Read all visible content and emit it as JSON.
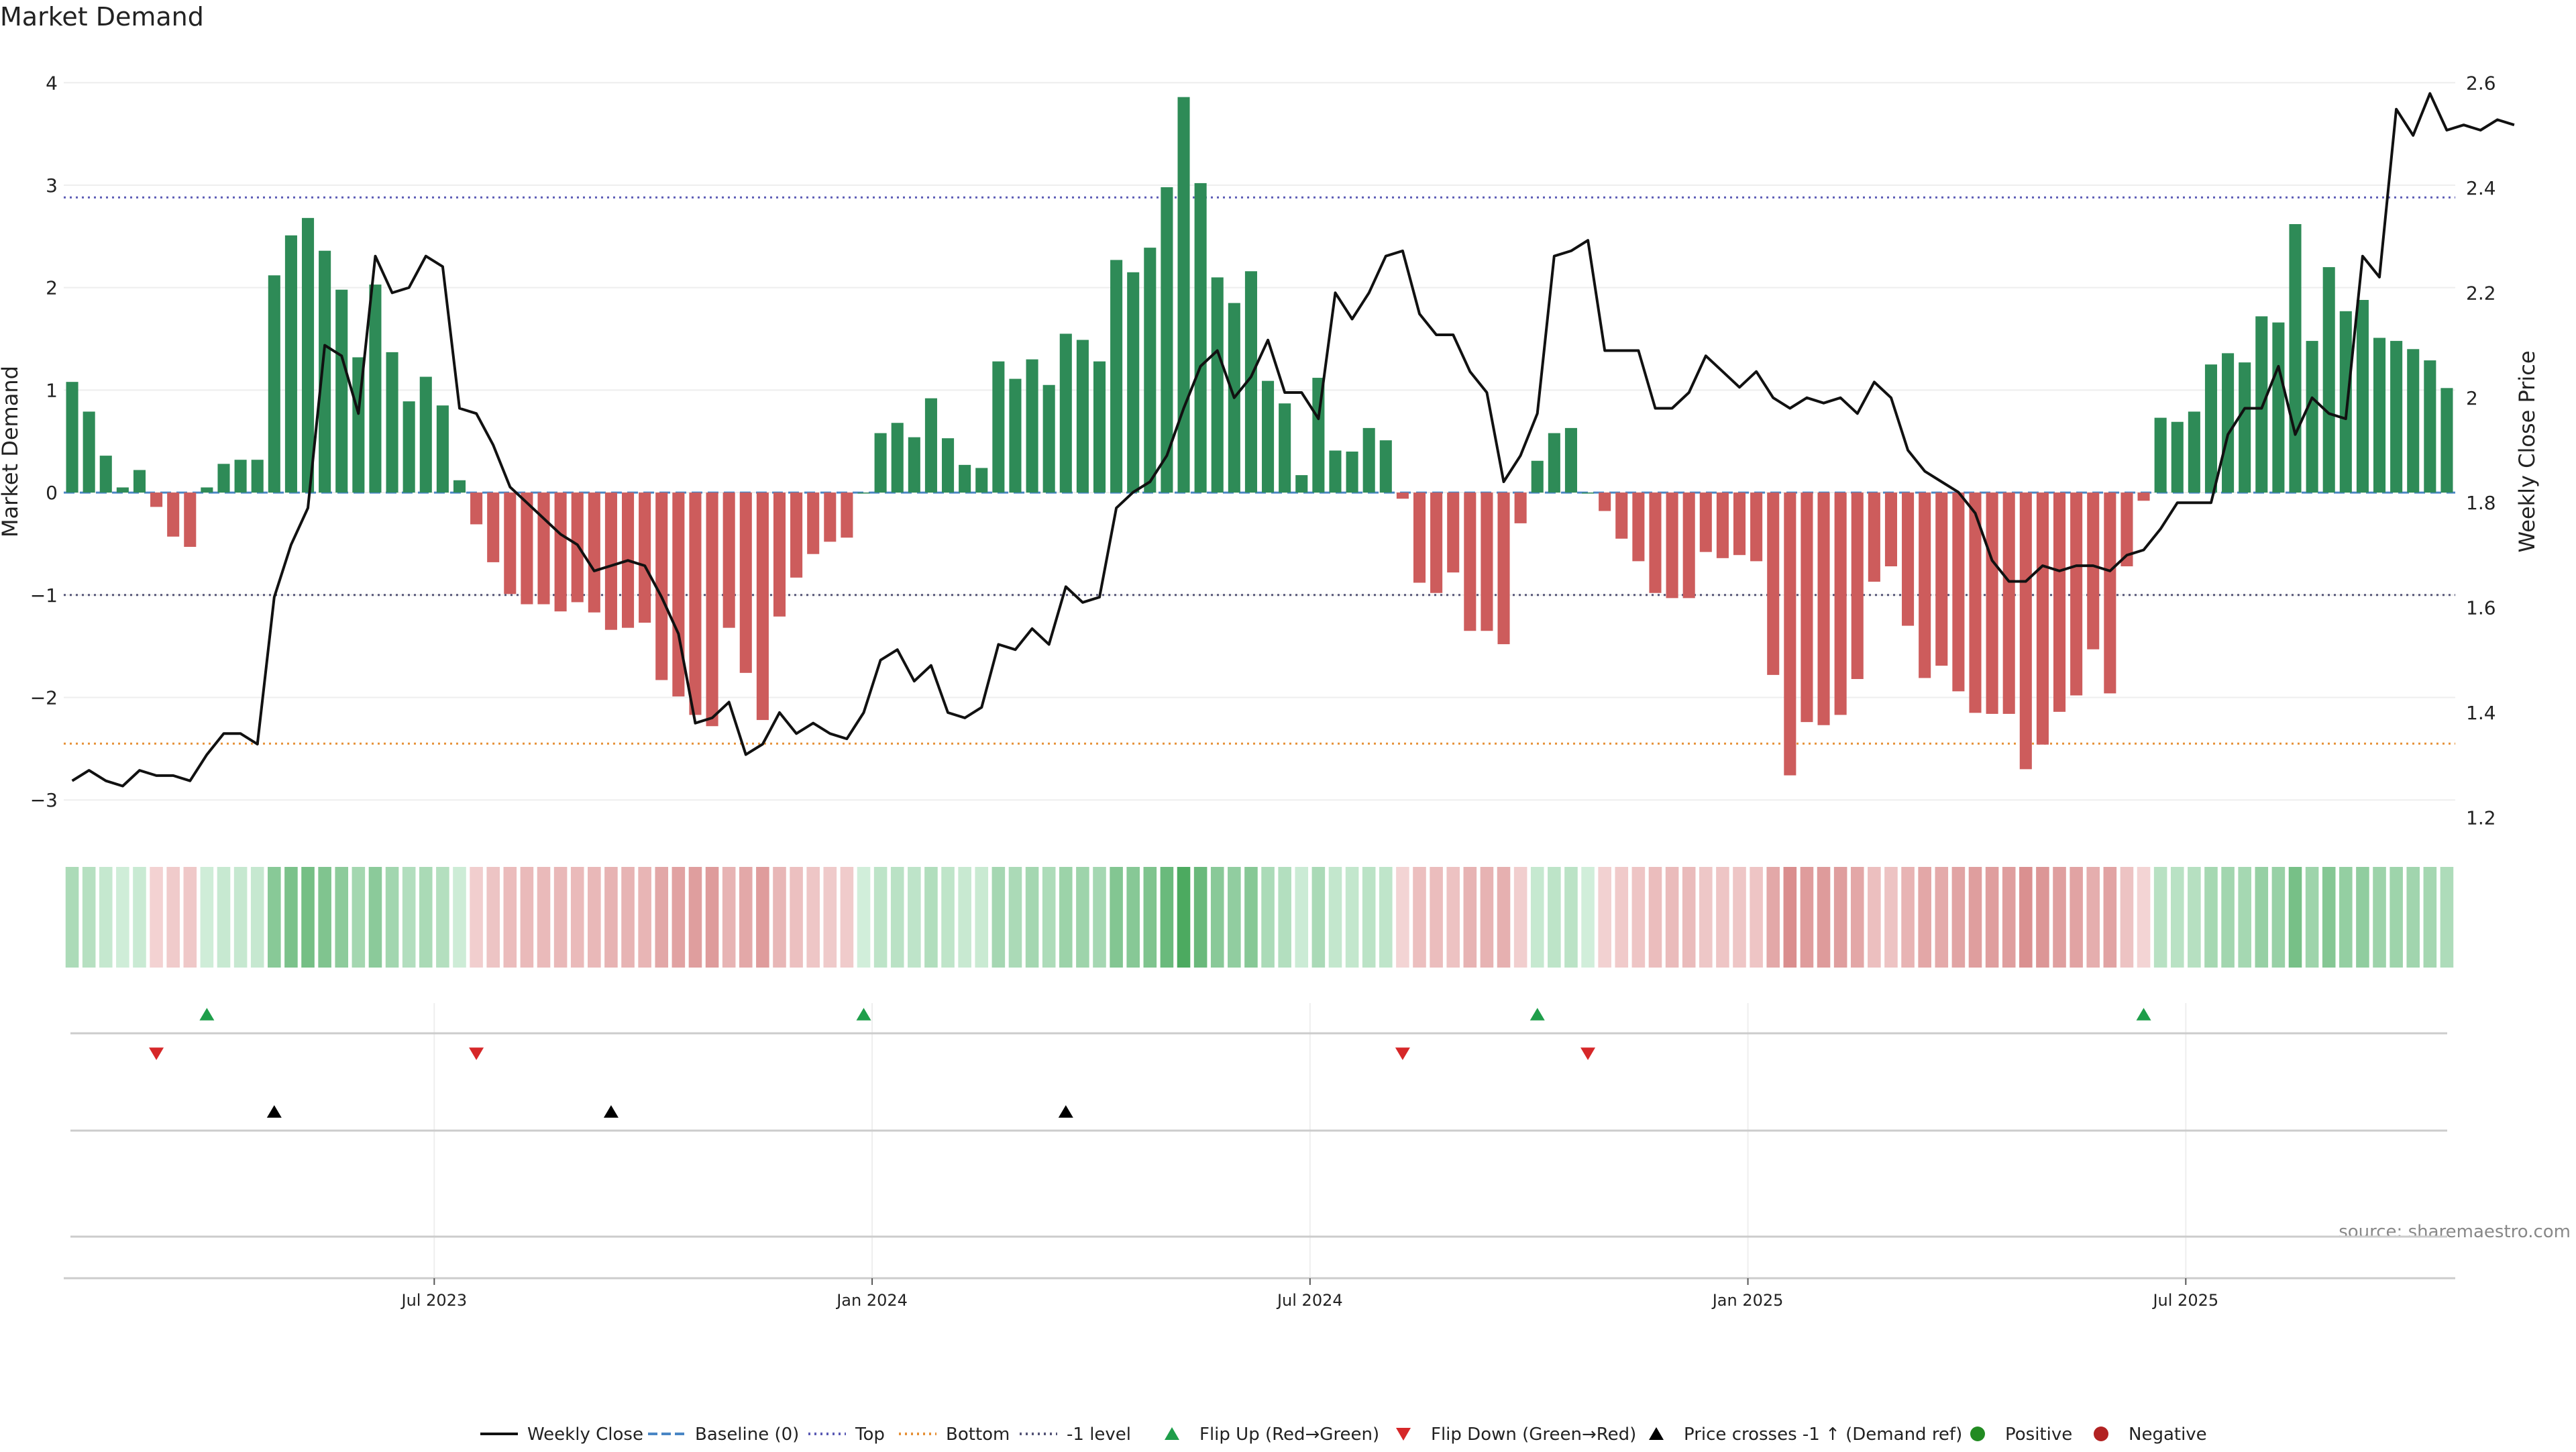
{
  "title": "Market Demand",
  "source": "source: sharemaestro.com",
  "colors": {
    "positive": "#2e8b57",
    "negative": "#cd5c5c",
    "price_line": "#111111",
    "top_line": "#5b5bb5",
    "bottom_line": "#e69138",
    "minus1_line": "#555577",
    "baseline": "#4a86c5",
    "flip_up": "#1e9e4a",
    "flip_down": "#d62728",
    "cross_marker": "#000000",
    "positive_dot": "#228b22",
    "negative_dot": "#b22222"
  },
  "chart_data": {
    "type": "bar+line",
    "title": "Market Demand",
    "y_left": {
      "label": "Market Demand",
      "range": [
        -3.3,
        4.1
      ],
      "ticks": [
        4,
        3,
        2,
        1,
        0,
        -1,
        -2,
        -3
      ],
      "tick_labels": [
        "4",
        "3",
        "2",
        "1",
        "0",
        "−1",
        "−2",
        "−3"
      ]
    },
    "y_right": {
      "label": "Weekly Close Price",
      "range": [
        1.175,
        2.62
      ],
      "ticks": [
        2.6,
        2.4,
        2.2,
        2.0,
        1.8,
        1.6,
        1.4,
        1.2
      ],
      "tick_labels": [
        "2.6",
        "2.4",
        "2.2",
        "2",
        "1.8",
        "1.6",
        "1.4",
        "1.2"
      ]
    },
    "x_axis": {
      "start_week": 0,
      "tick_weeks": [
        22,
        48,
        74,
        100,
        126
      ],
      "tick_labels": [
        "Jul 2023",
        "Jan 2024",
        "Jul 2024",
        "Jan 2025",
        "Jul 2025"
      ]
    },
    "reference_lines": {
      "top": 2.88,
      "bottom": -2.45,
      "minus1": -1.0,
      "baseline": 0
    },
    "demand": [
      1.08,
      0.79,
      0.36,
      0.05,
      0.22,
      -0.14,
      -0.43,
      -0.53,
      0.05,
      0.28,
      0.32,
      0.32,
      2.12,
      2.51,
      2.68,
      2.36,
      1.98,
      1.32,
      2.03,
      1.37,
      0.89,
      1.13,
      0.85,
      0.12,
      -0.31,
      -0.68,
      -0.99,
      -1.09,
      -1.09,
      -1.16,
      -1.07,
      -1.17,
      -1.34,
      -1.32,
      -1.27,
      -1.83,
      -1.99,
      -2.17,
      -2.28,
      -1.32,
      -1.76,
      -2.22,
      -1.21,
      -0.83,
      -0.6,
      -0.48,
      -0.44,
      0.0,
      0.58,
      0.68,
      0.54,
      0.92,
      0.53,
      0.27,
      0.24,
      1.28,
      1.11,
      1.3,
      1.05,
      1.55,
      1.49,
      1.28,
      2.27,
      2.15,
      2.39,
      2.98,
      3.86,
      3.02,
      2.1,
      1.85,
      2.16,
      1.09,
      0.87,
      0.17,
      1.12,
      0.41,
      0.4,
      0.63,
      0.51,
      -0.06,
      -0.88,
      -0.98,
      -0.78,
      -1.35,
      -1.35,
      -1.48,
      -0.3,
      0.31,
      0.58,
      0.63,
      0.0,
      -0.18,
      -0.45,
      -0.67,
      -0.98,
      -1.03,
      -1.03,
      -0.58,
      -0.64,
      -0.61,
      -0.67,
      -1.78,
      -2.76,
      -2.24,
      -2.27,
      -2.17,
      -1.82,
      -0.87,
      -0.72,
      -1.3,
      -1.81,
      -1.69,
      -1.94,
      -2.15,
      -2.16,
      -2.16,
      -2.7,
      -2.46,
      -2.14,
      -1.98,
      -1.53,
      -1.96,
      -0.72,
      -0.08,
      0.73,
      0.69,
      0.79,
      1.25,
      1.36,
      1.27,
      1.72,
      1.66,
      2.62,
      1.48,
      2.2,
      1.77,
      1.88,
      1.51,
      1.48,
      1.4,
      1.29,
      1.02
    ],
    "close": [
      1.27,
      1.29,
      1.27,
      1.26,
      1.29,
      1.28,
      1.28,
      1.27,
      1.32,
      1.36,
      1.36,
      1.34,
      1.62,
      1.72,
      1.79,
      2.1,
      2.08,
      1.97,
      2.27,
      2.2,
      2.21,
      2.27,
      2.25,
      1.98,
      1.97,
      1.91,
      1.83,
      1.8,
      1.77,
      1.74,
      1.72,
      1.67,
      1.68,
      1.69,
      1.68,
      1.62,
      1.55,
      1.38,
      1.39,
      1.42,
      1.32,
      1.34,
      1.4,
      1.36,
      1.38,
      1.36,
      1.35,
      1.4,
      1.5,
      1.52,
      1.46,
      1.49,
      1.4,
      1.39,
      1.41,
      1.53,
      1.52,
      1.56,
      1.53,
      1.64,
      1.61,
      1.62,
      1.79,
      1.82,
      1.84,
      1.89,
      1.98,
      2.06,
      2.09,
      2.0,
      2.04,
      2.11,
      2.01,
      2.01,
      1.96,
      2.2,
      2.15,
      2.2,
      2.27,
      2.28,
      2.16,
      2.12,
      2.12,
      2.05,
      2.01,
      1.84,
      1.89,
      1.97,
      2.27,
      2.28,
      2.3,
      2.09,
      2.09,
      2.09,
      1.98,
      1.98,
      2.01,
      2.08,
      2.05,
      2.02,
      2.05,
      2.0,
      1.98,
      2.0,
      1.99,
      2.0,
      1.97,
      2.03,
      2.0,
      1.9,
      1.86,
      1.84,
      1.82,
      1.78,
      1.69,
      1.65,
      1.65,
      1.68,
      1.67,
      1.68,
      1.68,
      1.67,
      1.7,
      1.71,
      1.75,
      1.8,
      1.8,
      1.8,
      1.93,
      1.98,
      1.98,
      2.06,
      1.93,
      2.0,
      1.97,
      1.96,
      2.27,
      2.23,
      2.55,
      2.5,
      2.58,
      2.51,
      2.52,
      2.51,
      2.53,
      2.52
    ],
    "flip_up_weeks": [
      8,
      47,
      87,
      123
    ],
    "flip_down_weeks": [
      5,
      24,
      79,
      90
    ],
    "price_cross_weeks": [
      12,
      32,
      59
    ],
    "legend": [
      "Weekly Close",
      "Baseline (0)",
      "Top",
      "Bottom",
      "-1 level",
      "Flip Up (Red→Green)",
      "Flip Down (Green→Red)",
      "Price crosses -1 ↑ (Demand ref)",
      "Positive",
      "Negative"
    ]
  }
}
